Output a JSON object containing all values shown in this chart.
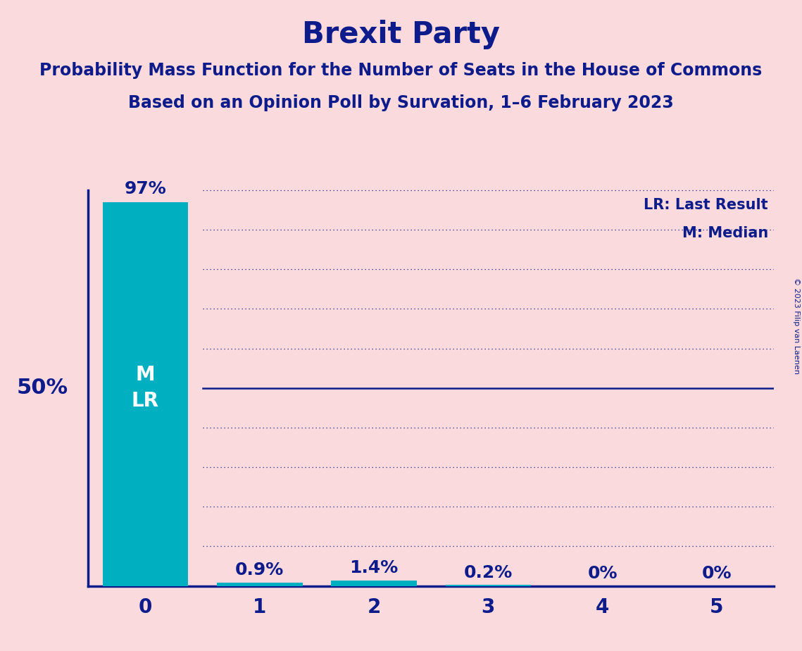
{
  "title": "Brexit Party",
  "subtitle1": "Probability Mass Function for the Number of Seats in the House of Commons",
  "subtitle2": "Based on an Opinion Poll by Survation, 1–6 February 2023",
  "copyright": "© 2023 Filip van Laenen",
  "categories": [
    0,
    1,
    2,
    3,
    4,
    5
  ],
  "values": [
    97.0,
    0.9,
    1.4,
    0.2,
    0.0,
    0.0
  ],
  "bar_color": "#00B0C0",
  "background_color": "#FADADD",
  "title_color": "#0D1C8A",
  "text_color": "#0D1C8A",
  "bar_label_color_outside": "#0D1C8A",
  "bar_label_color_inside": "#FFFFFF",
  "fifty_pct_y": 50,
  "legend_lr": "LR: Last Result",
  "legend_m": "M: Median",
  "ylabel_50pct": "50%",
  "xlim": [
    -0.5,
    5.5
  ],
  "ylim": [
    0,
    102
  ],
  "grid_color": "#0D1C8A",
  "solid_line_y": 50,
  "dotted_lines_y": [
    10,
    20,
    30,
    40,
    60,
    70,
    80,
    90,
    100
  ],
  "bar_width": 0.75,
  "title_fontsize": 30,
  "subtitle_fontsize": 17,
  "label_fontsize": 18,
  "tick_fontsize": 20,
  "legend_fontsize": 15,
  "fifty_pct_fontsize": 22,
  "ml_fontsize": 20,
  "copyright_fontsize": 8
}
